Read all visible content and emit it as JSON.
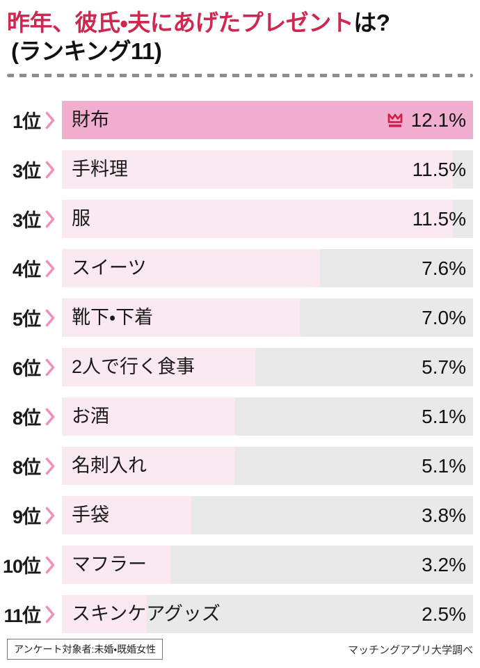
{
  "header": {
    "title_highlight": "昨年、彼氏・夫にあげたプレゼント",
    "title_suffix": "は?",
    "title_line2": "(ランキング11)"
  },
  "chart_data": {
    "type": "bar",
    "orientation": "horizontal",
    "title": "昨年、彼氏・夫にあげたプレゼントは?(ランキング11)",
    "unit": "%",
    "max_value": 12.1,
    "xlim": [
      0,
      12.1
    ],
    "grid": false,
    "legend": false,
    "rows": [
      {
        "rank": "1位",
        "label": "財布",
        "value": 12.1,
        "display": "12.1%",
        "highlight": true
      },
      {
        "rank": "3位",
        "label": "手料理",
        "value": 11.5,
        "display": "11.5%",
        "highlight": false
      },
      {
        "rank": "3位",
        "label": "服",
        "value": 11.5,
        "display": "11.5%",
        "highlight": false
      },
      {
        "rank": "4位",
        "label": "スイーツ",
        "value": 7.6,
        "display": "7.6%",
        "highlight": false
      },
      {
        "rank": "5位",
        "label": "靴下・下着",
        "value": 7.0,
        "display": "7.0%",
        "highlight": false
      },
      {
        "rank": "6位",
        "label": "2人で行く食事",
        "value": 5.7,
        "display": "5.7%",
        "highlight": false
      },
      {
        "rank": "8位",
        "label": "お酒",
        "value": 5.1,
        "display": "5.1%",
        "highlight": false
      },
      {
        "rank": "8位",
        "label": "名刺入れ",
        "value": 5.1,
        "display": "5.1%",
        "highlight": false
      },
      {
        "rank": "9位",
        "label": "手袋",
        "value": 3.8,
        "display": "3.8%",
        "highlight": false
      },
      {
        "rank": "10位",
        "label": "マフラー",
        "value": 3.2,
        "display": "3.2%",
        "highlight": false
      },
      {
        "rank": "11位",
        "label": "スキンケアグッズ",
        "value": 2.5,
        "display": "2.5%",
        "highlight": false
      }
    ]
  },
  "footer": {
    "note": "アンケート対象者:未婚・既婚女性",
    "source": "マッチングアプリ大学調べ"
  },
  "icons": {
    "crown": "crown-icon",
    "chevron": "chevron-right-icon"
  },
  "colors": {
    "title_accent": "#CE2850",
    "bar_highlight": "#F2AECF",
    "bar_fill": "#FBE9F2",
    "bar_track": "#E9E9E9",
    "chevron": "#EE8FBC",
    "crown": "#D0224C",
    "dash": "#8E8E8E",
    "text": "#111111"
  }
}
